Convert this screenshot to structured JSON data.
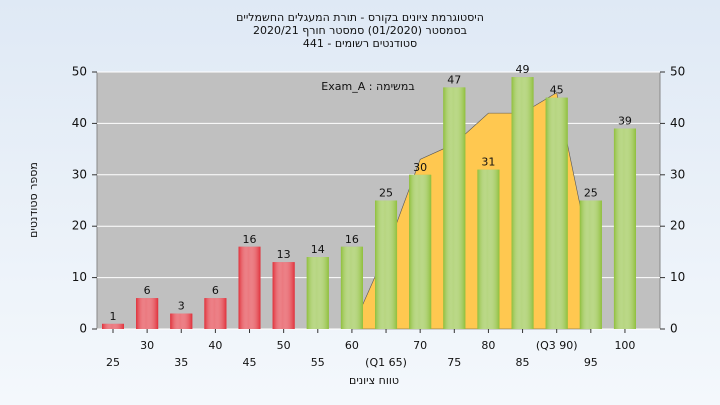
{
  "chart_data": {
    "type": "bar",
    "title": [
      "היסטוגרמת ציונים בקורס - תורת המעגלים החשמליים",
      "בסמסטר  (01/2020)  סמסטר חורף 2020/21",
      "סטודנטים רשומים - 441"
    ],
    "annotation": "Exam_A : במשימה",
    "x_label": "טווח ציונים",
    "y_label": "מספר סטודנטים",
    "categories": [
      "25",
      "30",
      "35",
      "40",
      "45",
      "50",
      "55",
      "60",
      "(Q1 65)",
      "70",
      "75",
      "80",
      "85",
      "(Q3 90)",
      "95",
      "100"
    ],
    "values": [
      1,
      6,
      3,
      6,
      16,
      13,
      14,
      16,
      25,
      30,
      47,
      31,
      49,
      45,
      25,
      39
    ],
    "colors": [
      "#e0303a",
      "#e0303a",
      "#e0303a",
      "#e0303a",
      "#e0303a",
      "#e0303a",
      "#8fbf3c",
      "#8fbf3c",
      "#8fbf3c",
      "#8fbf3c",
      "#8fbf3c",
      "#8fbf3c",
      "#8fbf3c",
      "#8fbf3c",
      "#8fbf3c",
      "#8fbf3c"
    ],
    "area": {
      "color": "#ffc850",
      "values": [
        null,
        null,
        null,
        null,
        null,
        null,
        null,
        0,
        15,
        33,
        36,
        42,
        42,
        46,
        14,
        null
      ]
    },
    "ylim": [
      0,
      50
    ],
    "yticks": [
      0,
      10,
      20,
      30,
      40,
      50
    ],
    "y2lim": [
      0,
      50
    ],
    "y2ticks": [
      0,
      10,
      20,
      30,
      40,
      50
    ],
    "grid": true
  }
}
